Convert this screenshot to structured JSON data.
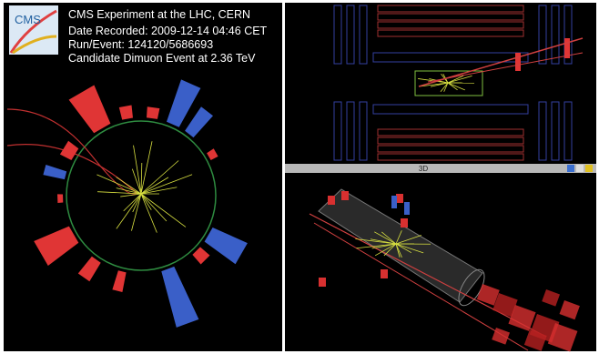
{
  "logo": "CMS",
  "header": {
    "title": "CMS Experiment at the LHC, CERN",
    "lines": [
      "Date Recorded: 2009-12-14 04:46 CET",
      "Run/Event: 124120/5686693",
      "Candidate Dimuon Event at 2.36 TeV"
    ]
  },
  "panels": {
    "bottom_right": {
      "title": "3D"
    }
  }
}
